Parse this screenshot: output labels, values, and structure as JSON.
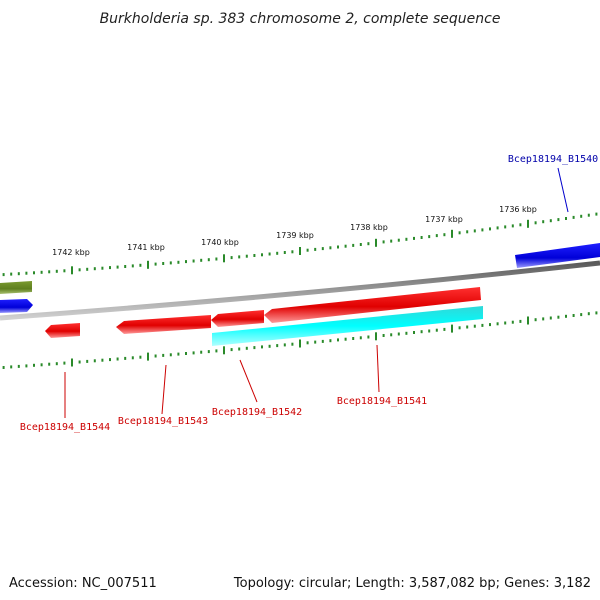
{
  "title": "Burkholderia sp. 383 chromosome 2, complete sequence",
  "footer": {
    "accession": "Accession: NC_007511",
    "summary": "Topology: circular; Length: 3,587,082 bp; Genes: 3,182"
  },
  "ruler": {
    "labels": [
      "1742 kbp",
      "1741 kbp",
      "1740 kbp",
      "1739 kbp",
      "1738 kbp",
      "1737 kbp",
      "1736 kbp"
    ]
  },
  "genes": {
    "B1540": "Bcep18194_B1540",
    "B1541": "Bcep18194_B1541",
    "B1542": "Bcep18194_B1542",
    "B1543": "Bcep18194_B1543",
    "B1544": "Bcep18194_B1544"
  },
  "colors": {
    "forward_gene": "#0000ee",
    "reverse_gene": "#ee0000",
    "rna_gene": "#00eeee",
    "other_feature": "#6b8e23",
    "backbone": "#888888",
    "ticks": "#2a8a2a",
    "forward_label": "#0000aa",
    "reverse_label": "#cc0000"
  }
}
